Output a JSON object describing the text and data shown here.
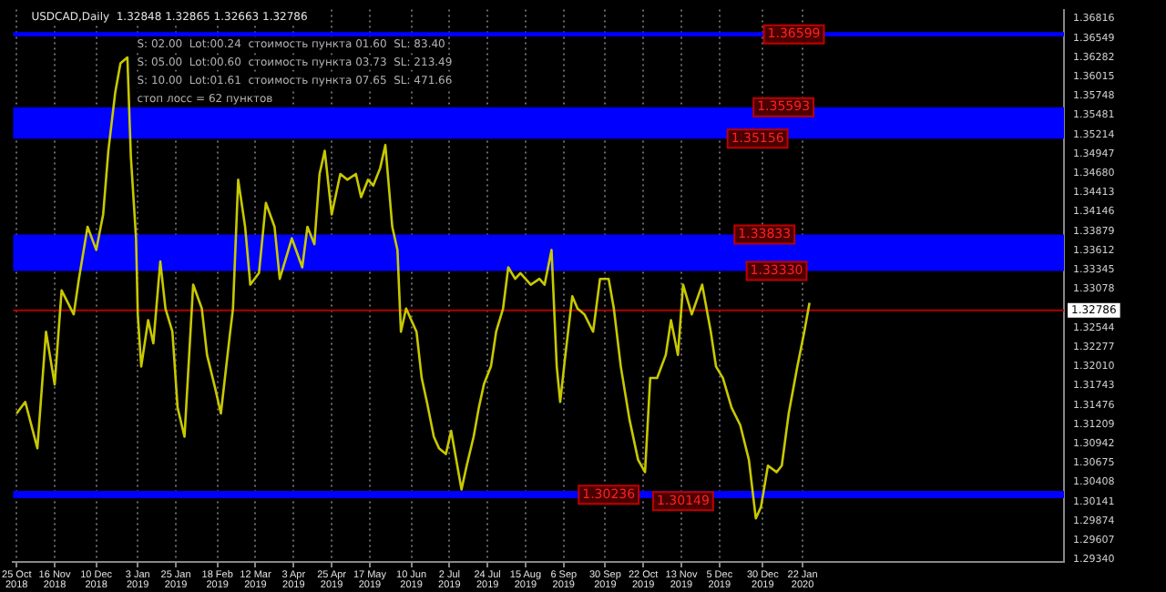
{
  "chart_data": {
    "type": "line",
    "title": "USDCAD,Daily  1.32848 1.32865 1.32663 1.32786",
    "annotations": [
      "S: 02.00  Lot:00.24  стоимость пункта 01.60  SL: 83.40",
      "S: 05.00  Lot:00.60  стоимость пункта 03.73  SL: 213.49",
      "S: 10.00  Lot:01.61  стоимость пункта 07.65  SL: 471.66",
      "стоп лосс = 62 пунктов",
      {
        "text": "1.36599",
        "x": "2020-01-17",
        "y": 1.36599
      },
      {
        "text": "1.35593",
        "x": "2020-01-11",
        "y": 1.35593
      },
      {
        "text": "1.35156",
        "x": "2019-12-27",
        "y": 1.35156
      },
      {
        "text": "1.33833",
        "x": "2019-12-31",
        "y": 1.33833
      },
      {
        "text": "1.33330",
        "x": "2020-01-07",
        "y": 1.3333
      },
      {
        "text": "1.30236",
        "x": "2019-10-02",
        "y": 1.30236
      },
      {
        "text": "1.30149",
        "x": "2019-11-14",
        "y": 1.30149
      }
    ],
    "x": [
      "2018-10-25",
      "2018-10-30",
      "2018-11-06",
      "2018-11-11",
      "2018-11-16",
      "2018-11-20",
      "2018-11-27",
      "2018-11-30",
      "2018-12-05",
      "2018-12-10",
      "2018-12-14",
      "2018-12-17",
      "2018-12-21",
      "2018-12-24",
      "2018-12-28",
      "2018-12-30",
      "2019-01-02",
      "2019-01-03",
      "2019-01-05",
      "2019-01-09",
      "2019-01-12",
      "2019-01-16",
      "2019-01-19",
      "2019-01-23",
      "2019-01-26",
      "2019-01-30",
      "2019-02-04",
      "2019-02-09",
      "2019-02-12",
      "2019-02-17",
      "2019-02-20",
      "2019-02-25",
      "2019-02-27",
      "2019-03-02",
      "2019-03-06",
      "2019-03-09",
      "2019-03-14",
      "2019-03-18",
      "2019-03-23",
      "2019-03-26",
      "2019-03-30",
      "2019-04-02",
      "2019-04-08",
      "2019-04-11",
      "2019-04-15",
      "2019-04-18",
      "2019-04-21",
      "2019-04-25",
      "2019-04-30",
      "2019-05-04",
      "2019-05-09",
      "2019-05-12",
      "2019-05-16",
      "2019-05-19",
      "2019-05-23",
      "2019-05-26",
      "2019-05-30",
      "2019-06-02",
      "2019-06-04",
      "2019-06-07",
      "2019-06-13",
      "2019-06-16",
      "2019-06-19",
      "2019-06-23",
      "2019-06-26",
      "2019-06-30",
      "2019-07-03",
      "2019-07-09",
      "2019-07-12",
      "2019-07-16",
      "2019-07-19",
      "2019-07-22",
      "2019-07-26",
      "2019-07-29",
      "2019-08-02",
      "2019-08-05",
      "2019-08-09",
      "2019-08-12",
      "2019-08-18",
      "2019-08-23",
      "2019-08-26",
      "2019-08-30",
      "2019-09-02",
      "2019-09-04",
      "2019-09-07",
      "2019-09-11",
      "2019-09-14",
      "2019-09-18",
      "2019-09-23",
      "2019-09-27",
      "2019-10-02",
      "2019-10-05",
      "2019-10-09",
      "2019-10-14",
      "2019-10-19",
      "2019-10-23",
      "2019-10-26",
      "2019-10-30",
      "2019-11-04",
      "2019-11-07",
      "2019-11-11",
      "2019-11-14",
      "2019-11-19",
      "2019-11-25",
      "2019-11-30",
      "2019-12-03",
      "2019-12-07",
      "2019-12-12",
      "2019-12-17",
      "2019-12-22",
      "2019-12-26",
      "2019-12-29",
      "2020-01-02",
      "2020-01-07",
      "2020-01-10",
      "2020-01-14",
      "2020-01-19",
      "2020-01-23",
      "2020-01-26"
    ],
    "series": [
      {
        "color": "#c8c800",
        "values": [
          1.3136,
          1.3152,
          1.3088,
          1.3249,
          1.3176,
          1.3306,
          1.3273,
          1.3322,
          1.3394,
          1.3362,
          1.3411,
          1.3499,
          1.358,
          1.362,
          1.3628,
          1.3491,
          1.3378,
          1.3273,
          1.3201,
          1.3265,
          1.3233,
          1.3346,
          1.3281,
          1.3249,
          1.3144,
          1.3104,
          1.3314,
          1.3281,
          1.3217,
          1.3168,
          1.3136,
          1.3241,
          1.3281,
          1.3459,
          1.3394,
          1.3314,
          1.333,
          1.3427,
          1.3394,
          1.3322,
          1.3354,
          1.3378,
          1.3338,
          1.3394,
          1.337,
          1.3467,
          1.3499,
          1.3411,
          1.3467,
          1.3459,
          1.3467,
          1.3435,
          1.3459,
          1.3451,
          1.3475,
          1.3507,
          1.3394,
          1.3362,
          1.3249,
          1.3281,
          1.3249,
          1.3185,
          1.3152,
          1.3104,
          1.3088,
          1.308,
          1.3112,
          1.3031,
          1.3064,
          1.3104,
          1.3144,
          1.3177,
          1.3201,
          1.3249,
          1.3281,
          1.3338,
          1.3322,
          1.333,
          1.3314,
          1.3322,
          1.3314,
          1.3362,
          1.3201,
          1.3152,
          1.3217,
          1.3298,
          1.3281,
          1.3273,
          1.3249,
          1.3322,
          1.3322,
          1.3281,
          1.3201,
          1.3128,
          1.3072,
          1.3055,
          1.3185,
          1.3185,
          1.3217,
          1.3265,
          1.3217,
          1.3314,
          1.3273,
          1.3314,
          1.3249,
          1.3201,
          1.3185,
          1.3144,
          1.312,
          1.3072,
          1.2991,
          1.3007,
          1.3064,
          1.3055,
          1.3064,
          1.3136,
          1.3201,
          1.3249,
          1.3289
        ]
      }
    ],
    "xlim": [
      "2018-10-23",
      "2020-06-21"
    ],
    "xticks": [
      {
        "value": "2018-10-25",
        "label": "25 Oct 2018"
      },
      {
        "value": "2018-11-16",
        "label": "16 Nov 2018"
      },
      {
        "value": "2018-12-10",
        "label": "10 Dec 2018"
      },
      {
        "value": "2019-01-03",
        "label": "3 Jan 2019"
      },
      {
        "value": "2019-01-25",
        "label": "25 Jan 2019"
      },
      {
        "value": "2019-02-18",
        "label": "18 Feb 2019"
      },
      {
        "value": "2019-03-12",
        "label": "12 Mar 2019"
      },
      {
        "value": "2019-04-03",
        "label": "3 Apr 2019"
      },
      {
        "value": "2019-04-25",
        "label": "25 Apr 2019"
      },
      {
        "value": "2019-05-17",
        "label": "17 May 2019"
      },
      {
        "value": "2019-06-10",
        "label": "10 Jun 2019"
      },
      {
        "value": "2019-07-02",
        "label": "2 Jul 2019"
      },
      {
        "value": "2019-07-24",
        "label": "24 Jul 2019"
      },
      {
        "value": "2019-08-15",
        "label": "15 Aug 2019"
      },
      {
        "value": "2019-09-06",
        "label": "6 Sep 2019"
      },
      {
        "value": "2019-09-30",
        "label": "30 Sep 2019"
      },
      {
        "value": "2019-10-22",
        "label": "22 Oct 2019"
      },
      {
        "value": "2019-11-13",
        "label": "13 Nov 2019"
      },
      {
        "value": "2019-12-05",
        "label": "5 Dec 2019"
      },
      {
        "value": "2019-12-30",
        "label": "30 Dec 2019"
      },
      {
        "value": "2020-01-22",
        "label": "22 Jan 2020"
      }
    ],
    "ylim": [
      1.2931,
      1.3694
    ],
    "yticks": [
      {
        "value": 1.2934,
        "label": "1.29340"
      },
      {
        "value": 1.29607,
        "label": "1.29607"
      },
      {
        "value": 1.29874,
        "label": "1.29874"
      },
      {
        "value": 1.30141,
        "label": "1.30141"
      },
      {
        "value": 1.30408,
        "label": "1.30408"
      },
      {
        "value": 1.30675,
        "label": "1.30675"
      },
      {
        "value": 1.30942,
        "label": "1.30942"
      },
      {
        "value": 1.31209,
        "label": "1.31209"
      },
      {
        "value": 1.31476,
        "label": "1.31476"
      },
      {
        "value": 1.31743,
        "label": "1.31743"
      },
      {
        "value": 1.3201,
        "label": "1.32010"
      },
      {
        "value": 1.32277,
        "label": "1.32277"
      },
      {
        "value": 1.32544,
        "label": "1.32544"
      },
      {
        "value": 1.33078,
        "label": "1.33078"
      },
      {
        "value": 1.33345,
        "label": "1.33345"
      },
      {
        "value": 1.33612,
        "label": "1.33612"
      },
      {
        "value": 1.33879,
        "label": "1.33879"
      },
      {
        "value": 1.34146,
        "label": "1.34146"
      },
      {
        "value": 1.34413,
        "label": "1.34413"
      },
      {
        "value": 1.3468,
        "label": "1.34680"
      },
      {
        "value": 1.34947,
        "label": "1.34947"
      },
      {
        "value": 1.35214,
        "label": "1.35214"
      },
      {
        "value": 1.35481,
        "label": "1.35481"
      },
      {
        "value": 1.35748,
        "label": "1.35748"
      },
      {
        "value": 1.36015,
        "label": "1.36015"
      },
      {
        "value": 1.36282,
        "label": "1.36282"
      },
      {
        "value": 1.36549,
        "label": "1.36549"
      },
      {
        "value": 1.36816,
        "label": "1.36816"
      }
    ],
    "bands": [
      {
        "axis": "y",
        "from": 1.3657,
        "to": 1.3663,
        "color": "#0000ff"
      },
      {
        "axis": "y",
        "from": 1.35156,
        "to": 1.35593,
        "color": "#0000ff"
      },
      {
        "axis": "y",
        "from": 1.3333,
        "to": 1.33833,
        "color": "#0000ff"
      },
      {
        "axis": "y",
        "from": 1.3019,
        "to": 1.3029,
        "color": "#0000ff"
      }
    ],
    "ref_lines": [
      {
        "axis": "y",
        "value": 1.32786,
        "label": "1.32786",
        "color": "#b00000"
      }
    ],
    "grid": "x",
    "legend": false,
    "marker": "none",
    "line_style": "solid"
  }
}
